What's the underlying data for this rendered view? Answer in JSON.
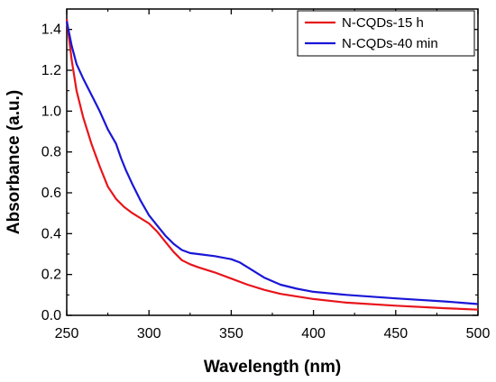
{
  "chart_data": {
    "type": "line",
    "title": "",
    "xlabel": "Wavelength (nm)",
    "ylabel": "Absorbance (a.u.)",
    "xlim": [
      250,
      500
    ],
    "ylim": [
      0,
      1.5
    ],
    "x_ticks": [
      250,
      300,
      350,
      400,
      450,
      500
    ],
    "y_ticks": [
      0.0,
      0.2,
      0.4,
      0.6,
      0.8,
      1.0,
      1.2,
      1.4
    ],
    "x_tick_labels": [
      "250",
      "300",
      "350",
      "400",
      "450",
      "500"
    ],
    "y_tick_labels": [
      "0.0",
      "0.2",
      "0.4",
      "0.6",
      "0.8",
      "1.0",
      "1.2",
      "1.4"
    ],
    "grid": false,
    "legend_position": "top-right",
    "series": [
      {
        "name": "N-CQDs-15 h",
        "color": "#e8141b",
        "x": [
          250,
          253,
          256,
          260,
          265,
          270,
          275,
          280,
          285,
          290,
          300,
          305,
          310,
          315,
          320,
          325,
          330,
          340,
          350,
          360,
          370,
          380,
          400,
          420,
          450,
          480,
          500
        ],
        "y": [
          1.45,
          1.25,
          1.1,
          0.97,
          0.84,
          0.73,
          0.63,
          0.57,
          0.53,
          0.5,
          0.45,
          0.41,
          0.36,
          0.31,
          0.27,
          0.25,
          0.235,
          0.21,
          0.18,
          0.15,
          0.125,
          0.105,
          0.08,
          0.062,
          0.047,
          0.035,
          0.028
        ]
      },
      {
        "name": "N-CQDs-40 min",
        "color": "#1a16d6",
        "x": [
          250,
          253,
          256,
          260,
          265,
          270,
          275,
          280,
          283,
          286,
          290,
          295,
          300,
          305,
          310,
          315,
          320,
          325,
          330,
          340,
          350,
          355,
          360,
          370,
          380,
          390,
          400,
          420,
          450,
          480,
          500
        ],
        "y": [
          1.44,
          1.32,
          1.23,
          1.16,
          1.08,
          1.0,
          0.91,
          0.84,
          0.77,
          0.71,
          0.64,
          0.56,
          0.49,
          0.44,
          0.39,
          0.35,
          0.32,
          0.305,
          0.3,
          0.29,
          0.275,
          0.26,
          0.235,
          0.185,
          0.15,
          0.13,
          0.115,
          0.1,
          0.083,
          0.068,
          0.055
        ]
      }
    ]
  }
}
